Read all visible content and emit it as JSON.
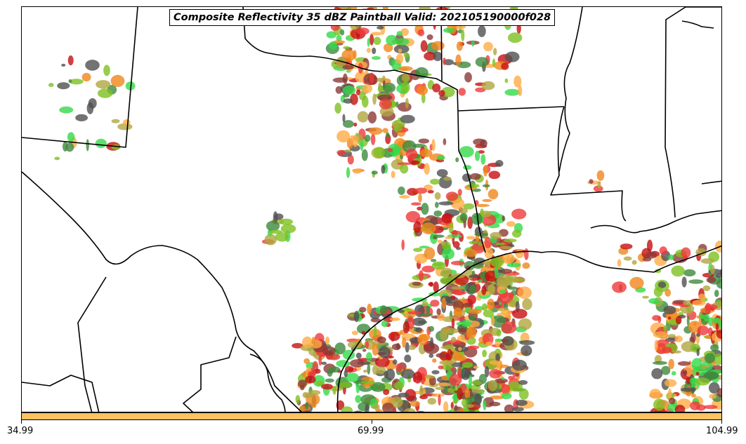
{
  "title": "Composite Reflectivity 35 dBZ Paintball Valid: 202105190000f028",
  "colorbar": {
    "color": "#ffc162",
    "ticks": [
      "34.99",
      "69.99",
      "104.99"
    ]
  },
  "palette": {
    "green": "#35d94a",
    "dark_green": "#3d8a3d",
    "olive": "#b0a640",
    "orange": "#f0861c",
    "light_orange": "#ffab45",
    "red": "#ef3a3a",
    "dark_red": "#c41010",
    "maroon": "#8b3a36",
    "gray": "#505050",
    "lime": "#7dc020"
  }
}
